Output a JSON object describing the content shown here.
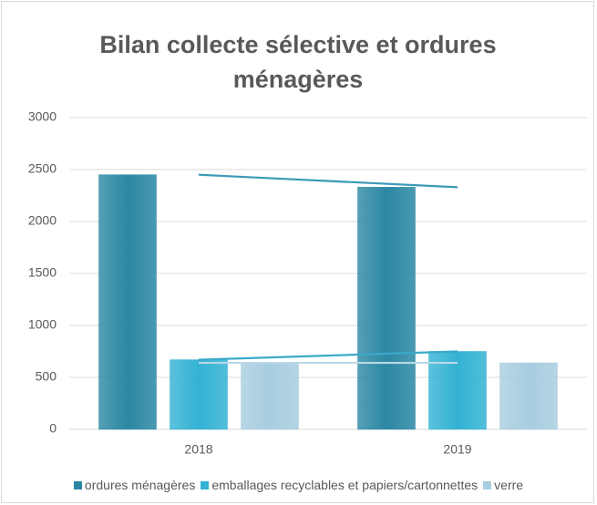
{
  "chart_data": {
    "type": "bar",
    "title": "Bilan collecte sélective et ordures ménagères",
    "categories": [
      "2018",
      "2019"
    ],
    "series": [
      {
        "name": "ordures ménagères",
        "color": "#2b87a3",
        "values": [
          2450,
          2330
        ]
      },
      {
        "name": "emballages recyclables et papiers/cartonnettes",
        "color": "#33b2d4",
        "values": [
          670,
          750
        ]
      },
      {
        "name": "verre",
        "color": "#a8cde0",
        "values": [
          640,
          640
        ]
      }
    ],
    "trendline_colors": [
      "#3a9ab6",
      "#3ba9c9",
      "#b8d9e7"
    ],
    "ylim": [
      0,
      3000
    ],
    "yticks": [
      0,
      500,
      1000,
      1500,
      2000,
      2500,
      3000
    ],
    "grid": true
  }
}
